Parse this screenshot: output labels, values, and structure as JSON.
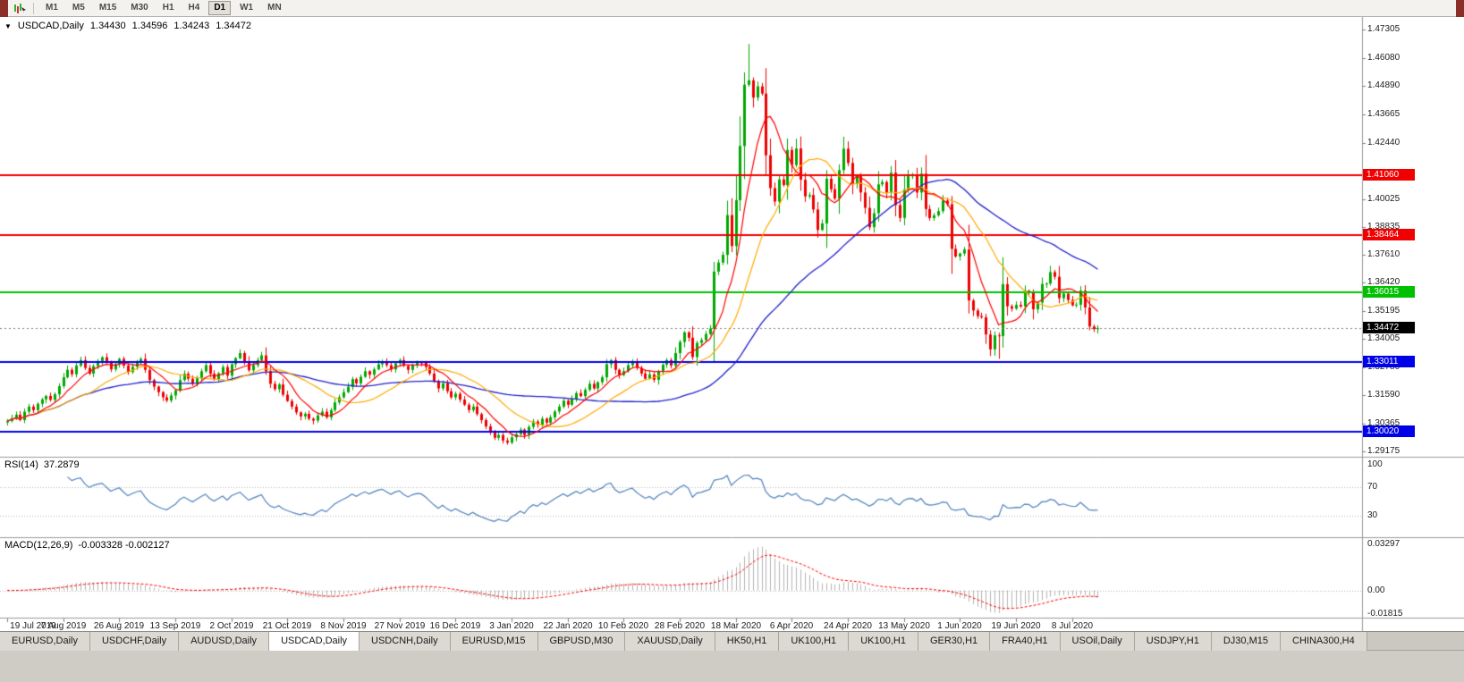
{
  "toolbar": {
    "timeframes": [
      "M1",
      "M5",
      "M15",
      "M30",
      "H1",
      "H4",
      "D1",
      "W1",
      "MN"
    ],
    "active_timeframe": "D1"
  },
  "icons": {
    "collapse_triangle": "▼"
  },
  "chart": {
    "title": {
      "symbol": "USDCAD,Daily",
      "open": "1.34430",
      "high": "1.34596",
      "low": "1.34243",
      "close": "1.34472"
    },
    "price_axis_labels": [
      "1.47305",
      "1.46080",
      "1.44890",
      "1.43665",
      "1.42440",
      "1.40025",
      "1.38835",
      "1.37610",
      "1.36420",
      "1.35195",
      "1.34005",
      "1.32780",
      "1.31590",
      "1.30365",
      "1.29175"
    ],
    "levels": [
      {
        "price": 1.4106,
        "label": "1.41060",
        "color": "#f00000"
      },
      {
        "price": 1.38464,
        "label": "1.38464",
        "color": "#f00000"
      },
      {
        "price": 1.36015,
        "label": "1.36015",
        "color": "#00c000"
      },
      {
        "price": 1.33011,
        "label": "1.33011",
        "color": "#0000e8"
      },
      {
        "price": 1.3002,
        "label": "1.30020",
        "color": "#0000e8"
      }
    ],
    "current_price": {
      "value": "1.34472",
      "label": "1.34472",
      "badge_color": "#000000"
    },
    "date_axis": [
      "19 Jul 2019",
      "7 Aug 2019",
      "26 Aug 2019",
      "13 Sep 2019",
      "2 Oct 2019",
      "21 Oct 2019",
      "8 Nov 2019",
      "27 Nov 2019",
      "16 Dec 2019",
      "3 Jan 2020",
      "22 Jan 2020",
      "10 Feb 2020",
      "28 Feb 2020",
      "18 Mar 2020",
      "6 Apr 2020",
      "24 Apr 2020",
      "13 May 2020",
      "1 Jun 2020",
      "19 Jun 2020",
      "8 Jul 2020"
    ]
  },
  "rsi_panel": {
    "label": "RSI(14)",
    "value": "37.2879",
    "axis_labels": [
      {
        "label": "100",
        "value": 100
      },
      {
        "label": "70",
        "value": 70
      },
      {
        "label": "30",
        "value": 30
      }
    ],
    "guides": [
      70,
      30
    ]
  },
  "macd_panel": {
    "label": "MACD(12,26,9)",
    "values": "-0.003328 -0.002127",
    "axis_labels": [
      {
        "label": "0.03297",
        "value": 0.03297
      },
      {
        "label": "0.00",
        "value": 0
      },
      {
        "label": "-0.01815",
        "value": -0.01815
      }
    ]
  },
  "tabs": {
    "items": [
      {
        "label": "EURUSD,Daily",
        "active": false
      },
      {
        "label": "USDCHF,Daily",
        "active": false
      },
      {
        "label": "AUDUSD,Daily",
        "active": false
      },
      {
        "label": "USDCAD,Daily",
        "active": true
      },
      {
        "label": "USDCNH,Daily",
        "active": false
      },
      {
        "label": "EURUSD,M15",
        "active": false
      },
      {
        "label": "GBPUSD,M30",
        "active": false
      },
      {
        "label": "XAUUSD,Daily",
        "active": false
      },
      {
        "label": "HK50,H1",
        "active": false
      },
      {
        "label": "UK100,H1",
        "active": false
      },
      {
        "label": "UK100,H1",
        "active": false
      },
      {
        "label": "GER30,H1",
        "active": false
      },
      {
        "label": "FRA40,H1",
        "active": false
      },
      {
        "label": "USOil,Daily",
        "active": false
      },
      {
        "label": "USDJPY,H1",
        "active": false
      },
      {
        "label": "DJ30,M15",
        "active": false
      },
      {
        "label": "CHINA300,H4",
        "active": false
      }
    ]
  },
  "chart_data": {
    "type": "candlestick",
    "symbol": "USDCAD",
    "period": "Daily",
    "visible_range": {
      "start": "19 Jul 2019",
      "end": "Jul 2020"
    },
    "price_min": 1.29175,
    "price_max": 1.47305,
    "closes": [
      1.3048,
      1.306,
      1.3075,
      1.3052,
      1.3088,
      1.311,
      1.3095,
      1.3122,
      1.3141,
      1.3156,
      1.3139,
      1.3163,
      1.3198,
      1.3236,
      1.3268,
      1.3249,
      1.3286,
      1.331,
      1.3276,
      1.3252,
      1.3284,
      1.3306,
      1.3322,
      1.3298,
      1.327,
      1.3293,
      1.3315,
      1.3286,
      1.3258,
      1.3281,
      1.3303,
      1.3315,
      1.3268,
      1.3224,
      1.3196,
      1.3172,
      1.315,
      1.3136,
      1.3158,
      1.318,
      1.3224,
      1.3251,
      1.323,
      1.3207,
      1.3232,
      1.3262,
      1.3288,
      1.3251,
      1.3228,
      1.3253,
      1.328,
      1.3243,
      1.3292,
      1.3318,
      1.334,
      1.3305,
      1.3266,
      1.3288,
      1.331,
      1.333,
      1.3262,
      1.3208,
      1.3185,
      1.3205,
      1.3161,
      1.3134,
      1.311,
      1.3085,
      1.3068,
      1.3079,
      1.3058,
      1.305,
      1.3072,
      1.3088,
      1.3064,
      1.3095,
      1.3128,
      1.315,
      1.3172,
      1.3195,
      1.3228,
      1.321,
      1.3238,
      1.3262,
      1.3247,
      1.327,
      1.3292,
      1.3305,
      1.3288,
      1.327,
      1.3296,
      1.331,
      1.3285,
      1.3268,
      1.3288,
      1.33,
      1.3299,
      1.328,
      1.3252,
      1.322,
      1.3188,
      1.321,
      1.3176,
      1.315,
      1.3165,
      1.314,
      1.3118,
      1.3095,
      1.311,
      1.3078,
      1.3052,
      1.3025,
      1.2998,
      1.2976,
      1.2988,
      1.2964,
      1.2955,
      1.2978,
      1.2992,
      1.3011,
      1.2988,
      1.3023,
      1.3046,
      1.3032,
      1.3058,
      1.3041,
      1.3064,
      1.3089,
      1.311,
      1.3135,
      1.3118,
      1.3143,
      1.3168,
      1.3155,
      1.3182,
      1.3208,
      1.3188,
      1.3215,
      1.3236,
      1.3292,
      1.331,
      1.3268,
      1.3246,
      1.3262,
      1.3288,
      1.3305,
      1.3276,
      1.3252,
      1.323,
      1.3248,
      1.3225,
      1.3262,
      1.329,
      1.331,
      1.3286,
      1.334,
      1.3388,
      1.3429,
      1.3406,
      1.3323,
      1.3384,
      1.3396,
      1.3422,
      1.3445,
      1.369,
      1.3729,
      1.3762,
      1.3933,
      1.38,
      1.3997,
      1.423,
      1.4493,
      1.4512,
      1.4438,
      1.4486,
      1.4455,
      1.419,
      1.4049,
      1.3991,
      1.4086,
      1.4062,
      1.4213,
      1.4148,
      1.4219,
      1.4085,
      1.4013,
      1.4019,
      1.3957,
      1.3869,
      1.3897,
      1.4089,
      1.4044,
      1.4004,
      1.4126,
      1.4218,
      1.4157,
      1.4067,
      1.41,
      1.403,
      1.3964,
      1.3881,
      1.3941,
      1.4065,
      1.4075,
      1.403,
      1.4115,
      1.3976,
      1.3921,
      1.4043,
      1.41,
      1.4105,
      1.403,
      1.4111,
      1.3959,
      1.392,
      1.3932,
      1.395,
      1.3995,
      1.398,
      1.3788,
      1.3755,
      1.3768,
      1.3785,
      1.3566,
      1.3523,
      1.3499,
      1.3494,
      1.342,
      1.3356,
      1.3416,
      1.3413,
      1.3636,
      1.3541,
      1.3531,
      1.3547,
      1.354,
      1.3608,
      1.3602,
      1.3528,
      1.3557,
      1.3637,
      1.3639,
      1.3688,
      1.3668,
      1.3576,
      1.3595,
      1.3568,
      1.3545,
      1.3548,
      1.3608,
      1.3536,
      1.3454,
      1.3443,
      1.34472
    ],
    "wick_overrides": {
      "167": {
        "high": 1.3995
      },
      "172": {
        "high": 1.4668
      },
      "230": {
        "low": 1.3315
      },
      "253": {
        "high": 1.34596,
        "low": 1.34243
      }
    },
    "colors": {
      "bull": "#00a800",
      "bear": "#ee0000",
      "ma_fast": "#ff0000",
      "ma_mid": "#ffaa00",
      "ma_slow": "#2222cc",
      "rsi_line": "#4f81bd",
      "macd_histogram": "#b4b4b4",
      "macd_signal": "#ff0000"
    },
    "overlays": [
      {
        "type": "moving-average",
        "color": "#ff0000"
      },
      {
        "type": "moving-average",
        "color": "#ffaa00"
      },
      {
        "type": "moving-average",
        "color": "#2222cc"
      }
    ],
    "indicators": [
      {
        "name": "RSI",
        "period": 14,
        "current": 37.2879
      },
      {
        "name": "MACD",
        "fast": 12,
        "slow": 26,
        "signal": 9,
        "current_macd": -0.003328,
        "current_signal": -0.002127
      }
    ]
  }
}
